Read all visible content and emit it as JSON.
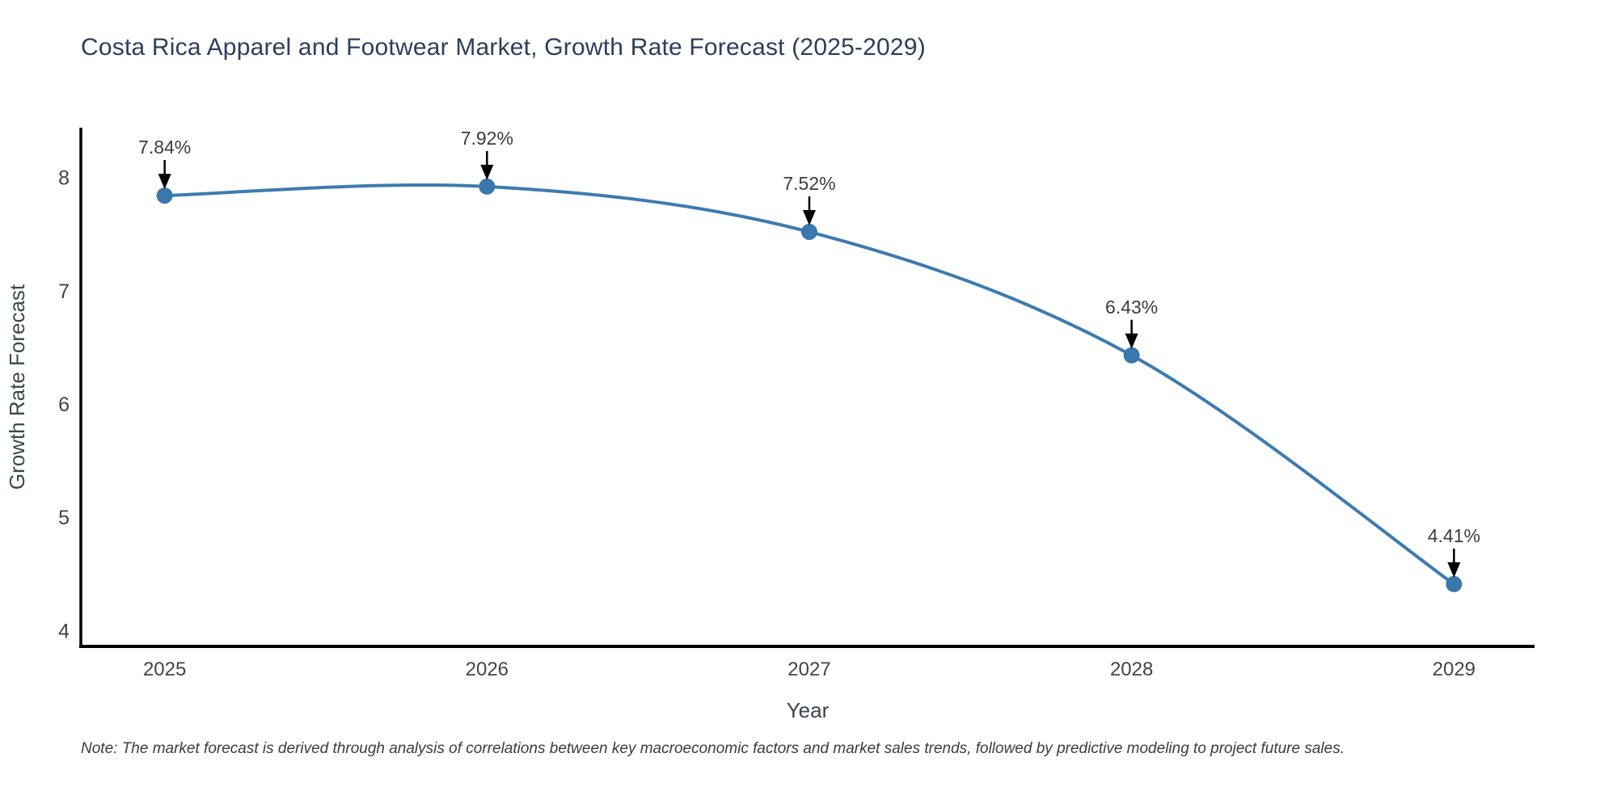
{
  "chart": {
    "title": "Costa Rica Apparel and Footwear Market, Growth Rate Forecast (2025-2029)",
    "note": "Note: The market forecast is derived through analysis of correlations between key macroeconomic factors and market sales trends, followed by predictive modeling to project future sales."
  },
  "chart_data": {
    "type": "line",
    "title": "Costa Rica Apparel and Footwear Market, Growth Rate Forecast (2025-2029)",
    "x": [
      2025,
      2026,
      2027,
      2028,
      2029
    ],
    "values": [
      7.84,
      7.92,
      7.52,
      6.43,
      4.41
    ],
    "point_labels": [
      "7.84%",
      "7.92%",
      "7.52%",
      "6.43%",
      "4.41%"
    ],
    "xlabel": "Year",
    "ylabel": "Growth Rate Forecast",
    "x_tick_labels": [
      "2025",
      "2026",
      "2027",
      "2028",
      "2029"
    ],
    "y_ticks": [
      4,
      5,
      6,
      7,
      8
    ],
    "xlim": [
      2024.74,
      2029.25
    ],
    "ylim": [
      3.86,
      8.44
    ],
    "grid": false,
    "legend_position": "none",
    "annotations_have_arrows": true,
    "note": "Note: The market forecast is derived through analysis of correlations between key macroeconomic factors and market sales trends, followed by predictive modeling to project future sales.",
    "colors": {
      "line": "#3d7bb0",
      "marker": "#3a77ac",
      "axis_line": "#000000",
      "tick_text": "#444444",
      "axis_title_text": "#3d4450",
      "annotation_text": "#3c3c3c",
      "annotation_arrow": "#000000",
      "title_text": "#2c3e5d",
      "background": "#ffffff"
    }
  }
}
